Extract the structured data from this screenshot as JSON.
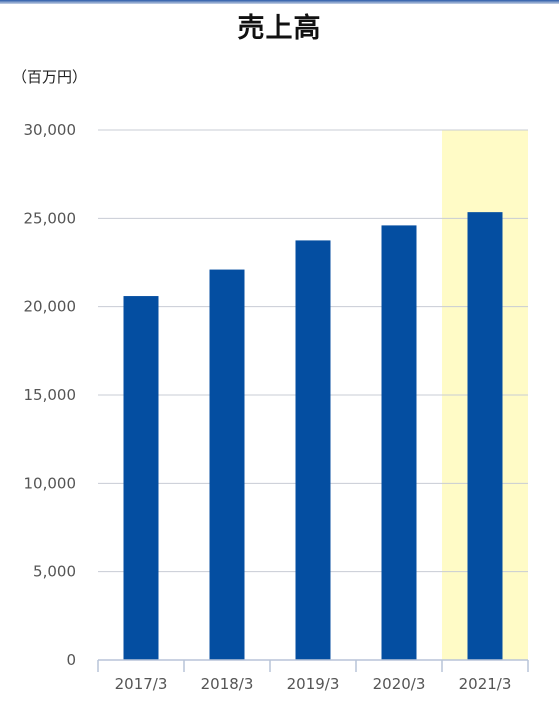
{
  "title": "売上高",
  "unit_label": "（百万円）",
  "colors": {
    "bar": "#044ea1",
    "highlight": "#fffbc6",
    "grid": "#c8ccd4",
    "axis": "#b8c4d8"
  },
  "chart_data": {
    "type": "bar",
    "title": "売上高",
    "ylabel": "（百万円）",
    "xlabel": "",
    "categories": [
      "2017/3",
      "2018/3",
      "2019/3",
      "2020/3",
      "2021/3"
    ],
    "values": [
      20600,
      22100,
      23750,
      24600,
      25350
    ],
    "ylim": [
      0,
      30000
    ],
    "yticks": [
      0,
      5000,
      10000,
      15000,
      20000,
      25000,
      30000
    ],
    "ytick_labels": [
      "0",
      "5,000",
      "10,000",
      "15,000",
      "20,000",
      "25,000",
      "30,000"
    ],
    "highlight_category": "2021/3",
    "grid": true,
    "legend": "none"
  }
}
